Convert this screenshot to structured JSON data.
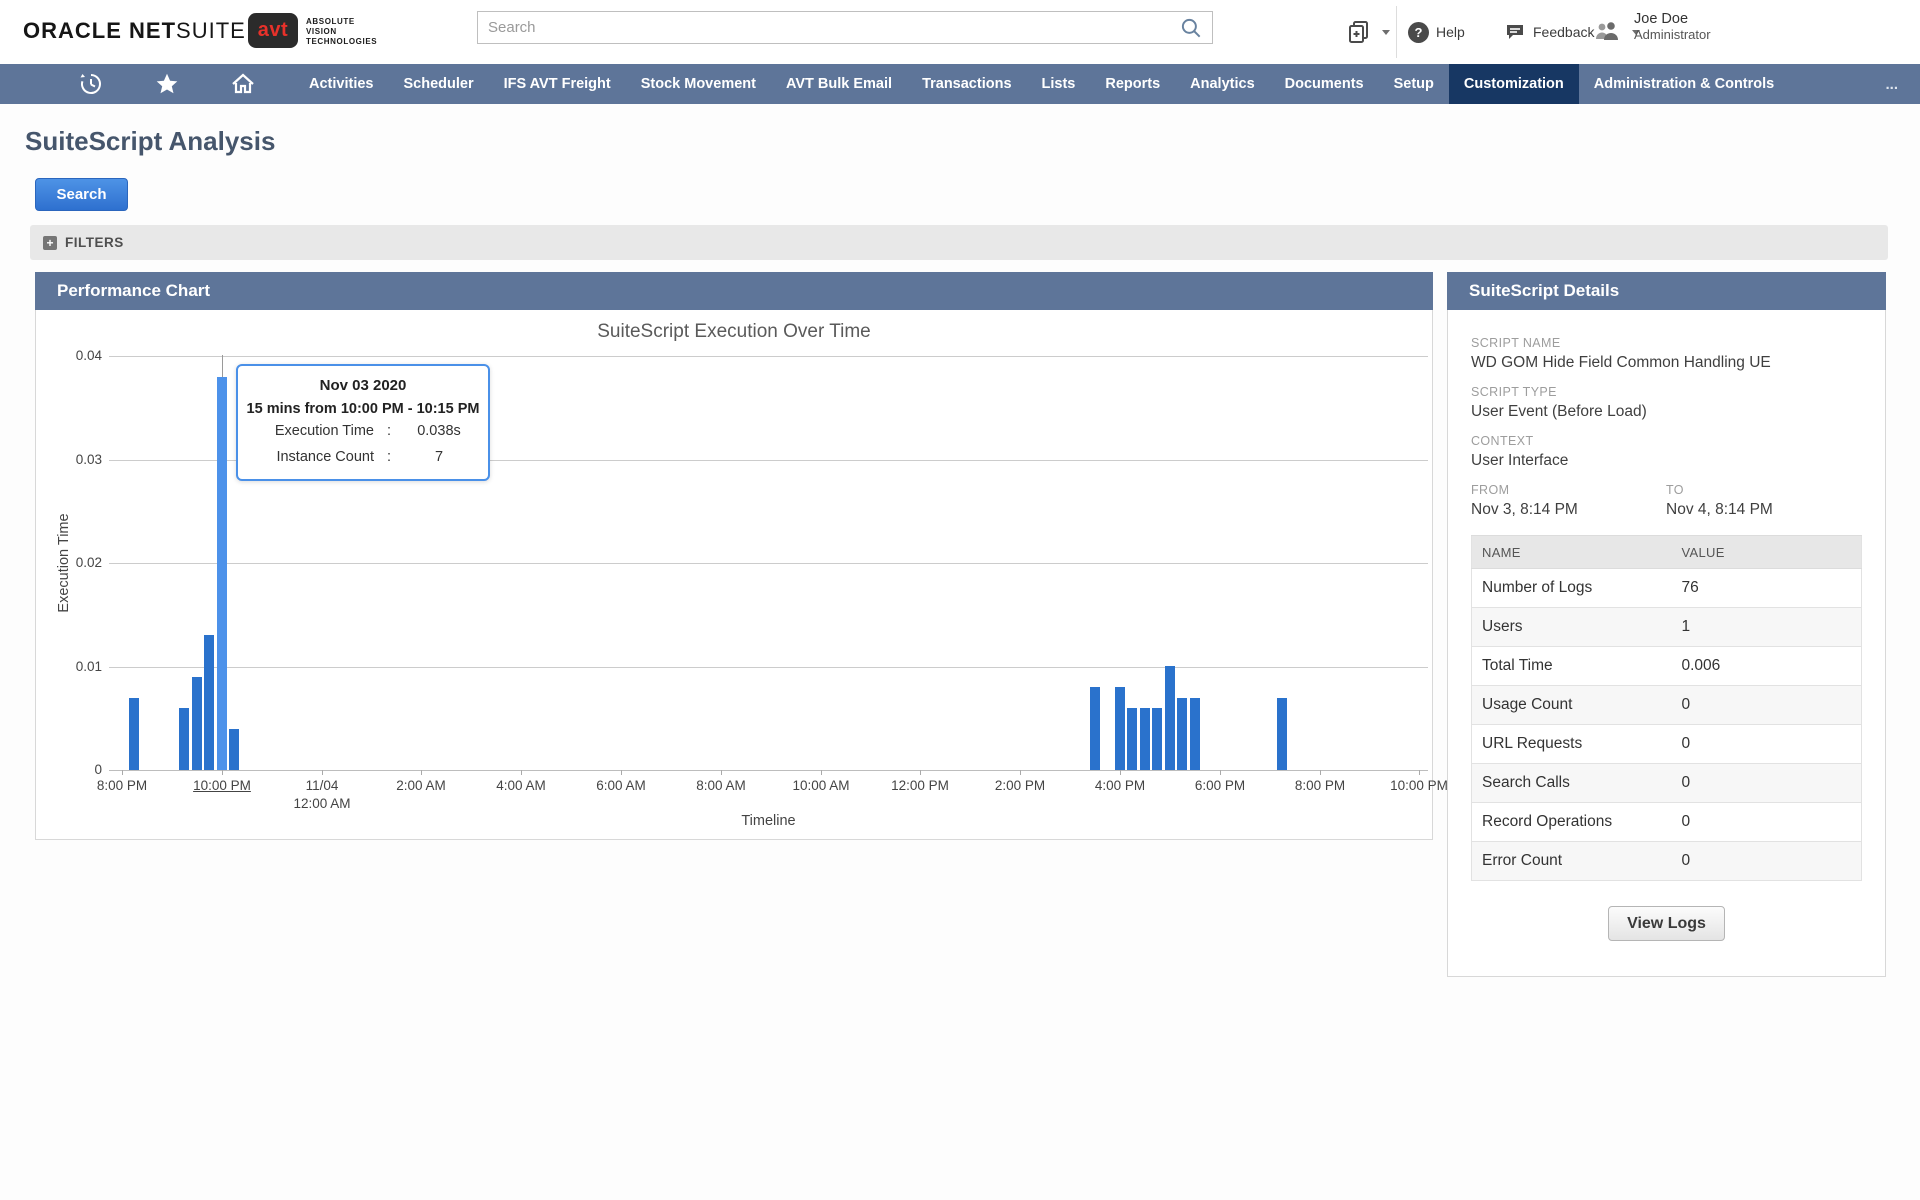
{
  "header": {
    "logo_oracle": "ORACLE",
    "logo_net": "NET",
    "logo_suite": "SUITE",
    "avt_logo_text": "avt",
    "avt_brand_lines": [
      "ABSOLUTE",
      "VISION",
      "TECHNOLOGIES"
    ],
    "search_placeholder": "Search",
    "help_label": "Help",
    "feedback_label": "Feedback",
    "user_name": "Joe Doe",
    "user_role": "Administrator"
  },
  "nav": {
    "items": [
      "Activities",
      "Scheduler",
      "IFS AVT Freight",
      "Stock Movement",
      "AVT Bulk Email",
      "Transactions",
      "Lists",
      "Reports",
      "Analytics",
      "Documents",
      "Setup",
      "Customization",
      "Administration & Controls"
    ],
    "active": "Customization",
    "overflow": "...",
    "bar_color": "#5e7599",
    "active_color": "#173763"
  },
  "page": {
    "title": "SuiteScript Analysis",
    "search_button": "Search",
    "filters_label": "FILTERS"
  },
  "performance_panel": {
    "title": "Performance Chart"
  },
  "chart_data": {
    "type": "bar",
    "title": "SuiteScript Execution Over Time",
    "xlabel": "Timeline",
    "ylabel": "Execution Time",
    "ylim": [
      0,
      0.04
    ],
    "grid": true,
    "bar_color": "#2a72cc",
    "bar_highlight_color": "#4d92ea",
    "y_ticks": [
      {
        "value": 0,
        "label": "0"
      },
      {
        "value": 0.01,
        "label": "0.01"
      },
      {
        "value": 0.02,
        "label": "0.02"
      },
      {
        "value": 0.03,
        "label": "0.03"
      },
      {
        "value": 0.04,
        "label": "0.04"
      }
    ],
    "x_ticks": [
      {
        "t": 0,
        "label": "8:00 PM"
      },
      {
        "t": 2,
        "label": "10:00 PM",
        "hovered": true
      },
      {
        "t": 4,
        "label": "11/04",
        "label2": "12:00 AM"
      },
      {
        "t": 6,
        "label": "2:00 AM"
      },
      {
        "t": 8,
        "label": "4:00 AM"
      },
      {
        "t": 10,
        "label": "6:00 AM"
      },
      {
        "t": 12,
        "label": "8:00 AM"
      },
      {
        "t": 14,
        "label": "10:00 AM"
      },
      {
        "t": 16,
        "label": "12:00 PM"
      },
      {
        "t": 18,
        "label": "2:00 PM"
      },
      {
        "t": 20,
        "label": "4:00 PM"
      },
      {
        "t": 22,
        "label": "6:00 PM"
      },
      {
        "t": 24,
        "label": "8:00 PM"
      },
      {
        "t": 26,
        "label": "10:00 PM"
      }
    ],
    "bars": [
      {
        "time": "Nov 3 8:15 PM",
        "t": 0.25,
        "execution_time": 0.007
      },
      {
        "time": "Nov 3 9:15 PM",
        "t": 1.25,
        "execution_time": 0.006
      },
      {
        "time": "Nov 3 9:30 PM",
        "t": 1.5,
        "execution_time": 0.009
      },
      {
        "time": "Nov 3 9:45 PM",
        "t": 1.75,
        "execution_time": 0.013
      },
      {
        "time": "Nov 3 10:00 PM",
        "t": 2,
        "execution_time": 0.038,
        "highlight": true
      },
      {
        "time": "Nov 3 10:15 PM",
        "t": 2.25,
        "execution_time": 0.004
      },
      {
        "time": "Nov 4 3:30 PM",
        "t": 19.5,
        "execution_time": 0.008
      },
      {
        "time": "Nov 4 4:00 PM",
        "t": 20,
        "execution_time": 0.008
      },
      {
        "time": "Nov 4 4:15 PM",
        "t": 20.25,
        "execution_time": 0.006
      },
      {
        "time": "Nov 4 4:30 PM",
        "t": 20.5,
        "execution_time": 0.006
      },
      {
        "time": "Nov 4 4:45 PM",
        "t": 20.75,
        "execution_time": 0.006
      },
      {
        "time": "Nov 4 5:00 PM",
        "t": 21,
        "execution_time": 0.01
      },
      {
        "time": "Nov 4 5:15 PM",
        "t": 21.25,
        "execution_time": 0.007
      },
      {
        "time": "Nov 4 5:30 PM",
        "t": 21.5,
        "execution_time": 0.007
      },
      {
        "time": "Nov 4 7:15 PM",
        "t": 23.25,
        "execution_time": 0.007
      }
    ],
    "hover_bar_t": 2,
    "tooltip": {
      "date": "Nov 03 2020",
      "range": "15 mins from 10:00 PM - 10:15 PM",
      "rows": [
        {
          "label": "Execution Time",
          "colon": ":",
          "value": "0.038s"
        },
        {
          "label": "Instance Count",
          "colon": ":",
          "value": "7"
        }
      ]
    }
  },
  "details_panel": {
    "title": "SuiteScript Details",
    "fields": [
      {
        "label": "SCRIPT NAME",
        "value": "WD GOM Hide Field Common Handling UE"
      },
      {
        "label": "SCRIPT TYPE",
        "value": "User Event (Before Load)"
      },
      {
        "label": "CONTEXT",
        "value": "User Interface"
      }
    ],
    "from_label": "FROM",
    "from_value": "Nov 3, 8:14 PM",
    "to_label": "TO",
    "to_value": "Nov 4, 8:14 PM",
    "table": {
      "columns": [
        "NAME",
        "VALUE"
      ],
      "rows": [
        [
          "Number of Logs",
          "76"
        ],
        [
          "Users",
          "1"
        ],
        [
          "Total Time",
          "0.006"
        ],
        [
          "Usage Count",
          "0"
        ],
        [
          "URL Requests",
          "0"
        ],
        [
          "Search Calls",
          "0"
        ],
        [
          "Record Operations",
          "0"
        ],
        [
          "Error Count",
          "0"
        ]
      ]
    },
    "view_logs_button": "View Logs"
  }
}
